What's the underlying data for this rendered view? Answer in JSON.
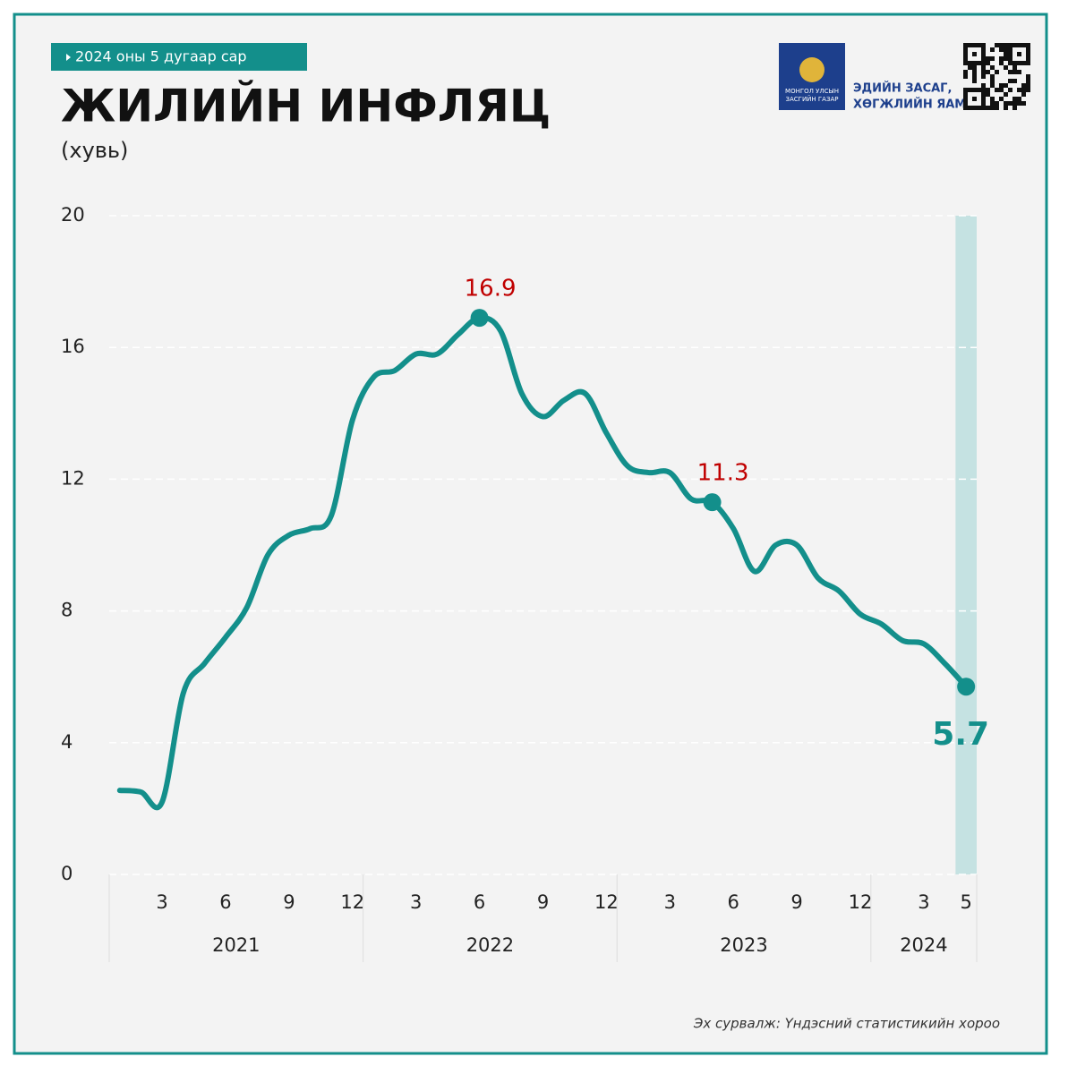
{
  "chart_data": {
    "type": "line",
    "tag": "2024  оны 5 дугаар сар",
    "title": "ЖИЛИЙН ИНФЛЯЦ",
    "subtitle": "(хувь)",
    "logo_text": [
      "МОНГОЛ УЛСЫН",
      "ЗАСГИЙН ГАЗАР"
    ],
    "ministry": [
      "ЭДИЙН ЗАСАГ,",
      "ХӨГЖЛИЙН ЯАМ"
    ],
    "source": "Эх сурвалж: Үндэсний статистикийн хороо",
    "categories": [
      null,
      null,
      "3",
      null,
      null,
      "6",
      null,
      null,
      "9",
      null,
      null,
      "12",
      null,
      null,
      "3",
      null,
      null,
      "6",
      null,
      null,
      "9",
      null,
      null,
      "12",
      null,
      null,
      "3",
      null,
      null,
      "6",
      null,
      null,
      "9",
      null,
      null,
      "12",
      null,
      null,
      "3",
      null,
      "5"
    ],
    "years": [
      "2021",
      "2022",
      "2023",
      "2024"
    ],
    "series": [
      {
        "color": "#138f8b",
        "values": [
          2.55,
          2.5,
          2.2,
          5.5,
          6.4,
          7.2,
          8.1,
          9.7,
          10.3,
          10.5,
          10.9,
          13.8,
          15.1,
          15.3,
          15.8,
          15.8,
          16.4,
          16.9,
          16.5,
          14.6,
          13.9,
          14.4,
          14.6,
          13.4,
          12.4,
          12.2,
          12.2,
          11.4,
          11.3,
          10.5,
          9.2,
          10.0,
          10.0,
          9.0,
          8.6,
          7.9,
          7.6,
          7.1,
          7.0,
          6.4,
          5.7
        ],
        "value_labels": [
          null,
          null,
          null,
          null,
          null,
          null,
          null,
          null,
          null,
          null,
          null,
          null,
          null,
          null,
          null,
          null,
          null,
          "16.9",
          null,
          null,
          null,
          null,
          null,
          null,
          null,
          null,
          null,
          null,
          "11.3",
          null,
          null,
          null,
          null,
          null,
          null,
          null,
          null,
          null,
          null,
          null,
          "5.7"
        ]
      }
    ],
    "ylim": [
      0,
      20
    ],
    "yticks": [
      0,
      4,
      8,
      12,
      16,
      20
    ],
    "grid": true,
    "label_color": "#c00000",
    "highlight_color": "#c5e2e2"
  }
}
